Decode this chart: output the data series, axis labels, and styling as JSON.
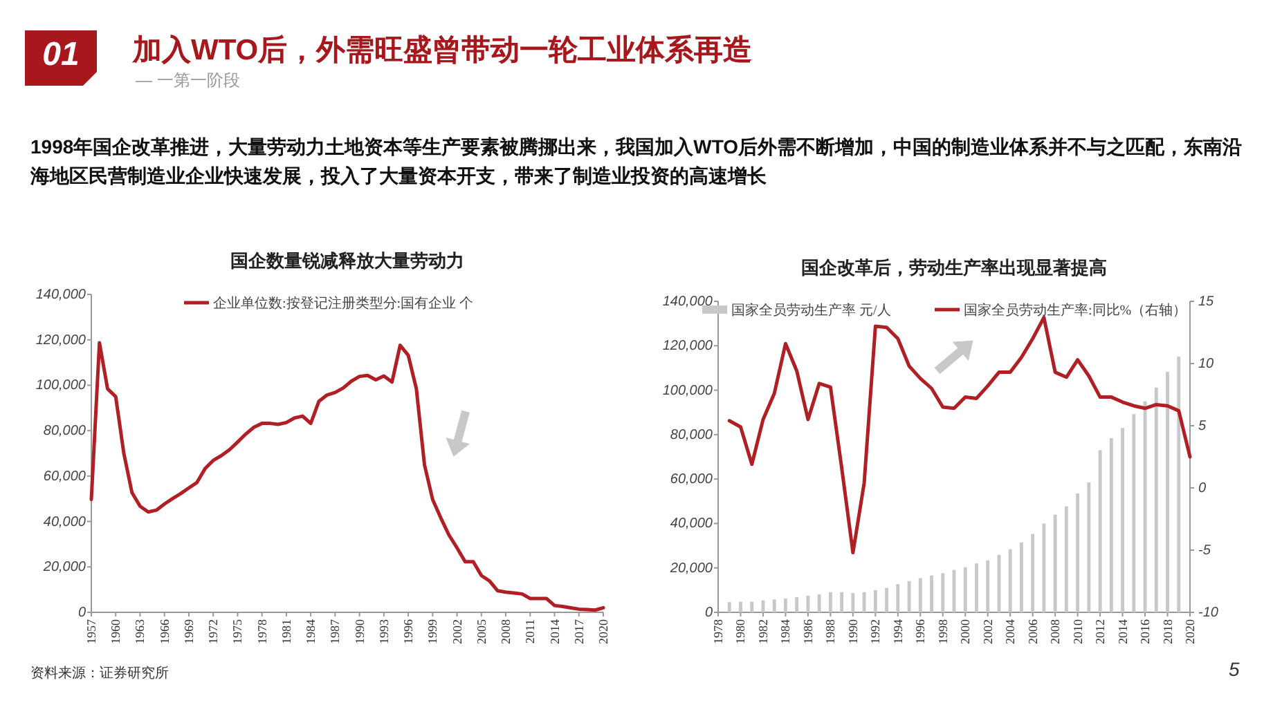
{
  "chart_data": [
    {
      "type": "other",
      "title": "加入WTO后，外需旺盛曾带动一轮工业体系再造",
      "subtitle": "— 一第一阶段",
      "annotations": [
        "01",
        "1998年国企改革推进，大量劳动力土地资本等生产要素被腾挪出来，我国加入WTO后外需不断增加，中国的制造业体系并不与之匹配，东南沿海地区民营制造业企业快速发展，投入了大量资本开支，带来了制造业投资的高速增长",
        "资料来源：证券研究所",
        "5"
      ]
    },
    {
      "type": "line",
      "title": "国企数量锐减释放大量劳动力",
      "legend": "top",
      "x": [
        1957,
        1958,
        1959,
        1960,
        1961,
        1962,
        1963,
        1964,
        1965,
        1966,
        1967,
        1968,
        1969,
        1970,
        1971,
        1972,
        1973,
        1974,
        1975,
        1976,
        1977,
        1978,
        1979,
        1980,
        1981,
        1982,
        1983,
        1984,
        1985,
        1986,
        1987,
        1988,
        1989,
        1990,
        1991,
        1992,
        1993,
        1994,
        1995,
        1996,
        1997,
        1998,
        1999,
        2000,
        2001,
        2002,
        2003,
        2004,
        2005,
        2006,
        2007,
        2008,
        2009,
        2010,
        2011,
        2012,
        2013,
        2014,
        2015,
        2016,
        2017,
        2018,
        2019,
        2020
      ],
      "xlim": [
        1957,
        2020
      ],
      "xticks": [
        1957,
        1960,
        1963,
        1966,
        1969,
        1972,
        1975,
        1978,
        1981,
        1984,
        1987,
        1990,
        1993,
        1996,
        1999,
        2002,
        2005,
        2008,
        2011,
        2014,
        2017,
        2020
      ],
      "ylim": [
        0,
        140000
      ],
      "yticks": [
        0,
        {
          "value": 20000,
          "label": "20,000"
        },
        {
          "value": 40000,
          "label": "40,000"
        },
        {
          "value": 60000,
          "label": "60,000"
        },
        {
          "value": 80000,
          "label": "80,000"
        },
        {
          "value": 100000,
          "label": "100,000"
        },
        {
          "value": 120000,
          "label": "120,000"
        },
        {
          "value": 140000,
          "label": "140,000"
        }
      ],
      "series": [
        {
          "name": "企业单位数:按登记注册类型分:国有企业 个",
          "color": "#b01f24",
          "values": [
            49700,
            118700,
            98400,
            95000,
            70000,
            52700,
            46700,
            44200,
            45000,
            47700,
            50100,
            52300,
            54800,
            57200,
            63300,
            66900,
            69000,
            71600,
            75000,
            78500,
            81500,
            83200,
            83200,
            82800,
            83600,
            85600,
            86400,
            83200,
            92900,
            95700,
            96800,
            98800,
            101800,
            103900,
            104300,
            102400,
            104100,
            101400,
            117600,
            113200,
            98400,
            64900,
            49700,
            41600,
            34100,
            28400,
            22300,
            22300,
            16200,
            13800,
            9500,
            8900,
            8500,
            8100,
            6100,
            6100,
            6100,
            3000,
            2600,
            2000,
            1400,
            1200,
            1000,
            2000
          ]
        }
      ]
    },
    {
      "type": "bar",
      "title": "国企改革后，劳动生产率出现显著提高",
      "legend": "top",
      "x": [
        1979,
        1980,
        1981,
        1982,
        1983,
        1984,
        1985,
        1986,
        1987,
        1988,
        1989,
        1990,
        1991,
        1992,
        1993,
        1994,
        1995,
        1996,
        1997,
        1998,
        1999,
        2000,
        2001,
        2002,
        2003,
        2004,
        2005,
        2006,
        2007,
        2008,
        2009,
        2010,
        2011,
        2012,
        2013,
        2014,
        2015,
        2016,
        2017,
        2018,
        2019,
        2020
      ],
      "xlim": [
        1978,
        2020
      ],
      "xticks": [
        1978,
        1980,
        1982,
        1984,
        1986,
        1988,
        1990,
        1992,
        1994,
        1996,
        1998,
        2000,
        2002,
        2004,
        2006,
        2008,
        2010,
        2012,
        2014,
        2016,
        2018,
        2020
      ],
      "ylim": [
        0,
        140000
      ],
      "yticks": [
        0,
        {
          "value": 20000,
          "label": "20,000"
        },
        {
          "value": 40000,
          "label": "40,000"
        },
        {
          "value": 60000,
          "label": "60,000"
        },
        {
          "value": 80000,
          "label": "80,000"
        },
        {
          "value": 100000,
          "label": "100,000"
        },
        {
          "value": 120000,
          "label": "120,000"
        },
        {
          "value": 140000,
          "label": "140,000"
        }
      ],
      "y2lim": [
        -10,
        15
      ],
      "y2ticks": [
        {
          "value": -10,
          "label": "-10"
        },
        {
          "value": -5,
          "label": "-5"
        },
        0,
        5,
        10,
        15
      ],
      "series": [
        {
          "name": "国家全员劳动生产率 元/人",
          "type": "bar",
          "color": "#c8c8c8",
          "values": [
            4600,
            4800,
            4800,
            5400,
            5800,
            6200,
            6800,
            7500,
            8100,
            9100,
            9100,
            8700,
            9100,
            10000,
            11000,
            12700,
            14100,
            15400,
            16600,
            17600,
            19100,
            20300,
            22000,
            23400,
            25900,
            28400,
            31500,
            35300,
            40000,
            44000,
            47700,
            53500,
            58500,
            73000,
            78400,
            83000,
            89200,
            95000,
            101200,
            108300,
            115100,
            null
          ]
        },
        {
          "name": "国家全员劳动生产率:同比%（右轴）",
          "type": "line",
          "axis": "y2",
          "color": "#b01f24",
          "values": [
            5.4,
            4.9,
            1.9,
            5.5,
            7.6,
            11.6,
            9.4,
            5.5,
            8.4,
            8.1,
            1.6,
            -5.2,
            0.4,
            13.0,
            12.9,
            12.0,
            9.8,
            8.8,
            8.0,
            6.5,
            6.4,
            7.3,
            7.2,
            8.2,
            9.3,
            9.3,
            10.5,
            12.0,
            13.7,
            9.3,
            8.9,
            10.3,
            9.0,
            7.3,
            7.3,
            6.9,
            6.6,
            6.4,
            6.7,
            6.6,
            6.2,
            2.5
          ]
        }
      ]
    }
  ]
}
